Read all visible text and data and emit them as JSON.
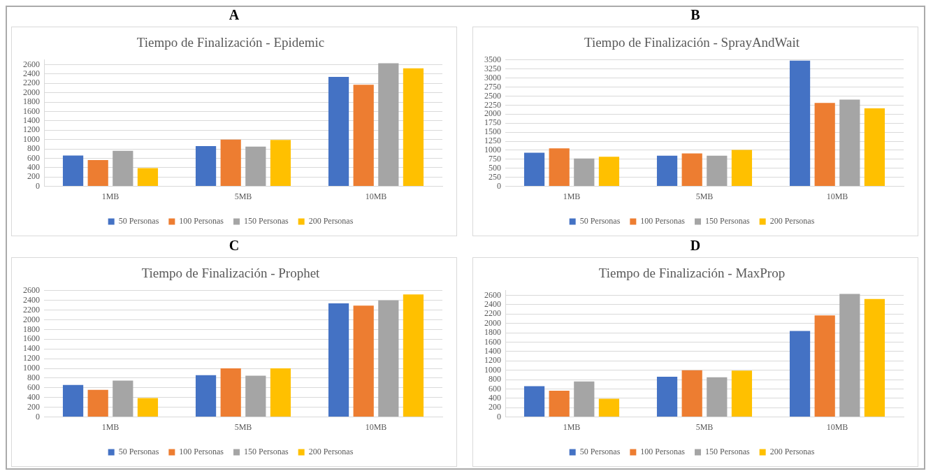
{
  "chart_data": [
    {
      "type": "bar",
      "title": "Tiempo de Finalización - Epidemic",
      "annotations": [
        "A"
      ],
      "categories": [
        "1MB",
        "5MB",
        "10MB"
      ],
      "series": [
        {
          "name": "50 Personas",
          "color": "#4472c4",
          "values": [
            660,
            860,
            2340
          ]
        },
        {
          "name": "100 Personas",
          "color": "#ed7d31",
          "values": [
            560,
            1000,
            2170
          ]
        },
        {
          "name": "150 Personas",
          "color": "#a5a5a5",
          "values": [
            760,
            850,
            2630
          ]
        },
        {
          "name": "200 Personas",
          "color": "#ffc000",
          "values": [
            390,
            990,
            2520
          ]
        }
      ],
      "ylim": [
        0,
        2700
      ],
      "yticks": [
        0,
        200,
        400,
        600,
        800,
        1000,
        1200,
        1400,
        1600,
        1800,
        2000,
        2200,
        2400,
        2600
      ],
      "grid": "y",
      "legend": "bottom"
    },
    {
      "type": "bar",
      "title": "Tiempo de Finalización - SprayAndWait",
      "annotations": [
        "B"
      ],
      "categories": [
        "1MB",
        "5MB",
        "10MB"
      ],
      "series": [
        {
          "name": "50 Personas",
          "color": "#4472c4",
          "values": [
            930,
            850,
            3480
          ]
        },
        {
          "name": "100 Personas",
          "color": "#ed7d31",
          "values": [
            1050,
            910,
            2310
          ]
        },
        {
          "name": "150 Personas",
          "color": "#a5a5a5",
          "values": [
            770,
            850,
            2400
          ]
        },
        {
          "name": "200 Personas",
          "color": "#ffc000",
          "values": [
            820,
            1010,
            2160
          ]
        }
      ],
      "ylim": [
        0,
        3500
      ],
      "yticks": [
        0,
        250,
        500,
        750,
        1000,
        1250,
        1500,
        1750,
        2000,
        2250,
        2500,
        2750,
        3000,
        3250,
        3500
      ],
      "grid": "y",
      "legend": "bottom"
    },
    {
      "type": "bar",
      "title": "Tiempo de Finalización - Prophet",
      "annotations": [
        "C"
      ],
      "categories": [
        "1MB",
        "5MB",
        "10MB"
      ],
      "series": [
        {
          "name": "50 Personas",
          "color": "#4472c4",
          "values": [
            660,
            860,
            2340
          ]
        },
        {
          "name": "100 Personas",
          "color": "#ed7d31",
          "values": [
            560,
            1000,
            2290
          ]
        },
        {
          "name": "150 Personas",
          "color": "#a5a5a5",
          "values": [
            750,
            850,
            2400
          ]
        },
        {
          "name": "200 Personas",
          "color": "#ffc000",
          "values": [
            390,
            1000,
            2520
          ]
        }
      ],
      "ylim": [
        0,
        2600
      ],
      "yticks": [
        0,
        200,
        400,
        600,
        800,
        1000,
        1200,
        1400,
        1600,
        1800,
        2000,
        2200,
        2400,
        2600
      ],
      "grid": "y",
      "legend": "bottom"
    },
    {
      "type": "bar",
      "title": "Tiempo de Finalización - MaxProp",
      "annotations": [
        "D"
      ],
      "categories": [
        "1MB",
        "5MB",
        "10MB"
      ],
      "series": [
        {
          "name": "50 Personas",
          "color": "#4472c4",
          "values": [
            660,
            860,
            1840
          ]
        },
        {
          "name": "100 Personas",
          "color": "#ed7d31",
          "values": [
            560,
            1000,
            2170
          ]
        },
        {
          "name": "150 Personas",
          "color": "#a5a5a5",
          "values": [
            760,
            850,
            2630
          ]
        },
        {
          "name": "200 Personas",
          "color": "#ffc000",
          "values": [
            390,
            990,
            2520
          ]
        }
      ],
      "ylim": [
        0,
        2700
      ],
      "yticks": [
        0,
        200,
        400,
        600,
        800,
        1000,
        1200,
        1400,
        1600,
        1800,
        2000,
        2200,
        2400,
        2600
      ],
      "grid": "y",
      "legend": "bottom"
    }
  ]
}
